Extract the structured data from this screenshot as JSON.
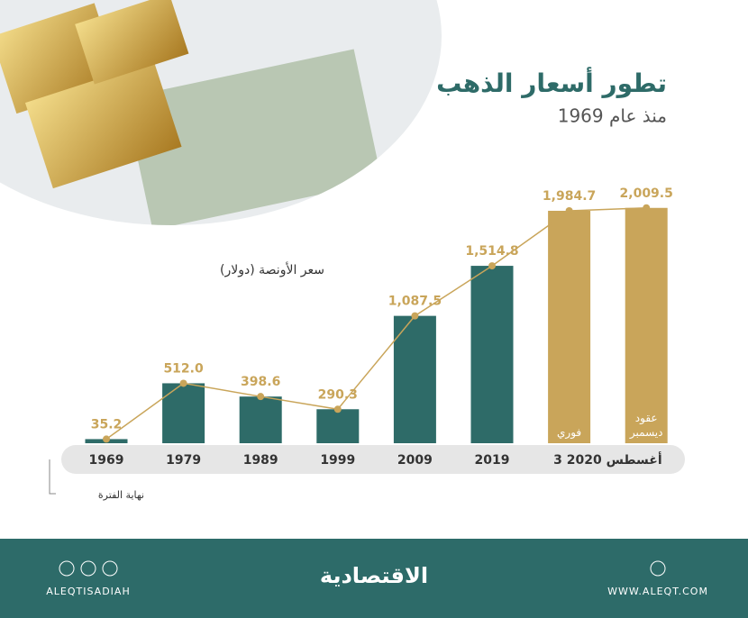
{
  "chart_data": {
    "type": "bar",
    "title": "تطور أسعار الذهب",
    "subtitle": "منذ عام 1969",
    "y_label": "سعر الأونصة (دولار)",
    "x_note": "نهاية الفترة",
    "categories": [
      "1969",
      "1979",
      "1989",
      "1999",
      "2009",
      "2019",
      "فوري",
      "عقود ديسمبر"
    ],
    "period_label": "3 أغسطس 2020",
    "values": [
      35.2,
      512.0,
      398.6,
      290.3,
      1087.5,
      1514.8,
      1984.7,
      2009.5
    ],
    "value_labels": [
      "35.2",
      "512.0",
      "398.6",
      "290.3",
      "1,087.5",
      "1,514.8",
      "1,984.7",
      "2,009.5"
    ],
    "colors": [
      "#2e6b68",
      "#2e6b68",
      "#2e6b68",
      "#2e6b68",
      "#2e6b68",
      "#2e6b68",
      "#c9a55a",
      "#c9a55a"
    ],
    "line_color": "#c9a55a",
    "ylim": [
      0,
      2000
    ]
  },
  "footer": {
    "logo": "الاقتصادية",
    "social": "ALEQTISADIAH",
    "website": "WWW.ALEQT.COM"
  }
}
